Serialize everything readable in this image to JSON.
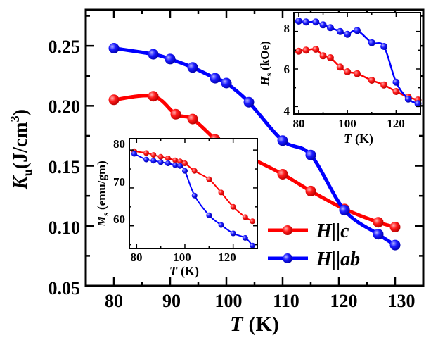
{
  "chart_data": [
    {
      "id": "main",
      "type": "line",
      "xlabel": {
        "symbol": "T",
        "unit": "(K)"
      },
      "ylabel": {
        "symbol": "K",
        "sub": "u",
        "unit": "(J/cm",
        "sup": "3",
        "close": ")"
      },
      "xlim": [
        75,
        135
      ],
      "ylim": [
        0.05,
        0.28
      ],
      "xticks": [
        80,
        90,
        100,
        110,
        120,
        130
      ],
      "yticks": [
        0.05,
        0.1,
        0.15,
        0.2,
        0.25
      ],
      "ytick_labels": [
        "0.05",
        "0.10",
        "0.15",
        "0.20",
        "0.25"
      ],
      "legend": {
        "position": "bottom-right",
        "entries": [
          {
            "series": "H_c",
            "label": {
              "symbol": "H",
              "sep": "||",
              "dir": "c"
            }
          },
          {
            "series": "H_ab",
            "label": {
              "symbol": "H",
              "sep": "||",
              "dir": "ab"
            }
          }
        ]
      },
      "series": [
        {
          "name": "H_c",
          "color": "#ff0000",
          "x": [
            80,
            87,
            91,
            94,
            98,
            100,
            104,
            110,
            115,
            121,
            127,
            130
          ],
          "y": [
            0.205,
            0.208,
            0.193,
            0.189,
            0.172,
            0.164,
            0.157,
            0.143,
            0.129,
            0.114,
            0.103,
            0.099
          ]
        },
        {
          "name": "H_ab",
          "color": "#0000ff",
          "x": [
            80,
            87,
            90,
            94,
            98,
            100,
            104,
            110,
            115,
            121,
            127,
            130
          ],
          "y": [
            0.248,
            0.243,
            0.239,
            0.232,
            0.223,
            0.219,
            0.203,
            0.171,
            0.159,
            0.113,
            0.093,
            0.084
          ]
        }
      ]
    },
    {
      "id": "inset_top",
      "type": "line",
      "xlabel": {
        "symbol": "T",
        "unit": "(K)"
      },
      "ylabel": {
        "symbol": "H",
        "sub": "s",
        "unit": "(kOe)"
      },
      "xlim": [
        78,
        130
      ],
      "ylim": [
        3.6,
        9.0
      ],
      "xticks": [
        80,
        100,
        120
      ],
      "yticks": [
        4,
        6,
        8
      ],
      "series": [
        {
          "name": "H_c",
          "color": "#ff0000",
          "x": [
            80,
            83,
            87,
            90,
            93,
            97,
            100,
            104,
            110,
            115,
            120,
            125,
            129
          ],
          "y": [
            6.95,
            7.0,
            7.05,
            6.7,
            6.6,
            6.1,
            5.85,
            5.75,
            5.4,
            5.15,
            4.8,
            4.5,
            4.35
          ]
        },
        {
          "name": "H_ab",
          "color": "#0000ff",
          "x": [
            80,
            83,
            87,
            90,
            93,
            97,
            100,
            104,
            110,
            115,
            120,
            125,
            129
          ],
          "y": [
            8.55,
            8.5,
            8.5,
            8.35,
            8.2,
            8.0,
            7.85,
            8.05,
            7.4,
            7.2,
            5.3,
            4.4,
            4.15
          ]
        }
      ]
    },
    {
      "id": "inset_bottom",
      "type": "line",
      "xlabel": {
        "symbol": "T",
        "unit": "(K)"
      },
      "ylabel": {
        "symbol": "M",
        "sub": "s",
        "unit": "(emu/gm)"
      },
      "xlim": [
        77,
        130
      ],
      "ylim": [
        54,
        83
      ],
      "xticks": [
        80,
        100,
        120
      ],
      "yticks": [
        60,
        70,
        80
      ],
      "series": [
        {
          "name": "H_c",
          "color": "#ff0000",
          "x": [
            79,
            84,
            87,
            90,
            93,
            96,
            98,
            100,
            104,
            110,
            115,
            120,
            125,
            128
          ],
          "y": [
            79.7,
            79.2,
            78.7,
            78.2,
            77.8,
            77.3,
            77.0,
            76.5,
            74.5,
            72.3,
            68.8,
            65.0,
            62.3,
            61.2
          ]
        },
        {
          "name": "H_ab",
          "color": "#0000ff",
          "x": [
            79,
            84,
            87,
            90,
            93,
            96,
            98,
            100,
            104,
            110,
            115,
            120,
            125,
            128
          ],
          "y": [
            79.0,
            77.5,
            77.2,
            76.8,
            76.5,
            76.0,
            75.8,
            74.5,
            68.0,
            62.8,
            60.2,
            58.0,
            56.8,
            54.8
          ]
        }
      ]
    }
  ]
}
